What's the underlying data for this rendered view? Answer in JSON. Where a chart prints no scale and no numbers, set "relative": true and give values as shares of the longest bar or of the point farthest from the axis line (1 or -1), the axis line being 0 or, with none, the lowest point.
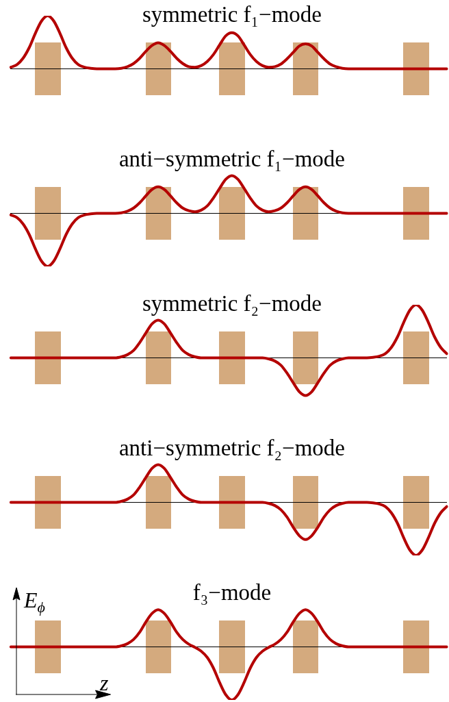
{
  "chart_data": [
    {
      "type": "line",
      "title": "symmetric f₁−mode",
      "relative": true,
      "color": "#b40000",
      "categories": [
        null,
        null,
        null,
        null,
        null,
        null,
        null,
        null,
        null,
        null,
        null,
        null,
        null,
        null,
        null,
        null,
        null,
        null,
        null,
        null,
        null,
        null,
        null,
        null,
        null,
        null,
        null,
        null,
        null,
        null,
        null,
        null,
        null,
        null,
        null,
        null,
        null,
        null,
        null,
        null,
        null,
        null,
        null,
        null,
        null,
        null,
        null,
        null,
        null,
        null,
        null,
        null,
        null,
        null,
        null,
        null,
        null,
        null,
        null,
        null,
        null,
        null,
        null,
        null,
        null,
        null,
        null,
        null,
        null,
        null,
        null,
        null
      ],
      "values": [
        0.03,
        0.08,
        0.2,
        0.4,
        0.67,
        0.9,
        1,
        0.9,
        0.67,
        0.4,
        0.2,
        0.08,
        0.03,
        0.01,
        0,
        0,
        0,
        0,
        0.01,
        0.04,
        0.1,
        0.2,
        0.33,
        0.44,
        0.49,
        0.44,
        0.33,
        0.2,
        0.1,
        0.04,
        0.03,
        0.06,
        0.14,
        0.27,
        0.45,
        0.62,
        0.68,
        0.62,
        0.45,
        0.27,
        0.14,
        0.06,
        0.03,
        0.04,
        0.09,
        0.19,
        0.31,
        0.43,
        0.47,
        0.43,
        0.31,
        0.19,
        0.09,
        0.04,
        0.01,
        0,
        0,
        0,
        0,
        0,
        0,
        0,
        0,
        0,
        0,
        0,
        0,
        0,
        0,
        0,
        0,
        0
      ]
    },
    {
      "type": "line",
      "title": "anti−symmetric f₁−mode",
      "relative": true,
      "color": "#b40000",
      "categories": [
        null,
        null,
        null,
        null,
        null,
        null,
        null,
        null,
        null,
        null,
        null,
        null,
        null,
        null,
        null,
        null,
        null,
        null,
        null,
        null,
        null,
        null,
        null,
        null,
        null,
        null,
        null,
        null,
        null,
        null,
        null,
        null,
        null,
        null,
        null,
        null,
        null,
        null,
        null,
        null,
        null,
        null,
        null,
        null,
        null,
        null,
        null,
        null,
        null,
        null,
        null,
        null,
        null,
        null,
        null,
        null,
        null,
        null,
        null,
        null,
        null,
        null,
        null,
        null,
        null,
        null,
        null,
        null,
        null,
        null,
        null,
        null
      ],
      "values": [
        -0.03,
        -0.08,
        -0.2,
        -0.4,
        -0.67,
        -0.9,
        -1,
        -0.9,
        -0.67,
        -0.4,
        -0.2,
        -0.08,
        -0.03,
        -0.01,
        0,
        0,
        0,
        0,
        0.01,
        0.04,
        0.1,
        0.2,
        0.33,
        0.45,
        0.5,
        0.45,
        0.33,
        0.2,
        0.1,
        0.05,
        0.03,
        0.06,
        0.14,
        0.29,
        0.47,
        0.64,
        0.71,
        0.64,
        0.47,
        0.29,
        0.14,
        0.06,
        0.03,
        0.05,
        0.1,
        0.2,
        0.33,
        0.45,
        0.5,
        0.45,
        0.33,
        0.2,
        0.1,
        0.04,
        0.01,
        0,
        0,
        0,
        0,
        0,
        0,
        0,
        0,
        0,
        0,
        0,
        0,
        0,
        0,
        0,
        0,
        0
      ]
    },
    {
      "type": "line",
      "title": "symmetric f₂−mode",
      "relative": true,
      "color": "#b40000",
      "categories": [
        null,
        null,
        null,
        null,
        null,
        null,
        null,
        null,
        null,
        null,
        null,
        null,
        null,
        null,
        null,
        null,
        null,
        null,
        null,
        null,
        null,
        null,
        null,
        null,
        null,
        null,
        null,
        null,
        null,
        null,
        null,
        null,
        null,
        null,
        null,
        null,
        null,
        null,
        null,
        null,
        null,
        null,
        null,
        null,
        null,
        null,
        null,
        null,
        null,
        null,
        null,
        null,
        null,
        null,
        null,
        null,
        null,
        null,
        null,
        null,
        null,
        null,
        null,
        null,
        null,
        null,
        null,
        null,
        null,
        null,
        null,
        null
      ],
      "values": [
        0,
        0,
        0,
        0,
        0,
        0,
        0,
        0,
        0,
        0,
        0,
        0,
        0,
        0,
        0,
        0,
        0,
        0,
        0.02,
        0.06,
        0.14,
        0.29,
        0.47,
        0.64,
        0.71,
        0.64,
        0.47,
        0.29,
        0.14,
        0.06,
        0.02,
        0,
        0,
        0,
        0,
        0,
        0,
        0,
        0,
        0,
        0,
        0,
        -0.02,
        -0.06,
        -0.14,
        -0.29,
        -0.47,
        -0.64,
        -0.71,
        -0.64,
        -0.47,
        -0.29,
        -0.14,
        -0.06,
        -0.02,
        0,
        0,
        0,
        0,
        0.01,
        0.03,
        0.08,
        0.2,
        0.4,
        0.67,
        0.9,
        1,
        0.9,
        0.67,
        0.4,
        0.2,
        0.08
      ]
    },
    {
      "type": "line",
      "title": "anti−symmetric f₂−mode",
      "relative": true,
      "color": "#b40000",
      "categories": [
        null,
        null,
        null,
        null,
        null,
        null,
        null,
        null,
        null,
        null,
        null,
        null,
        null,
        null,
        null,
        null,
        null,
        null,
        null,
        null,
        null,
        null,
        null,
        null,
        null,
        null,
        null,
        null,
        null,
        null,
        null,
        null,
        null,
        null,
        null,
        null,
        null,
        null,
        null,
        null,
        null,
        null,
        null,
        null,
        null,
        null,
        null,
        null,
        null,
        null,
        null,
        null,
        null,
        null,
        null,
        null,
        null,
        null,
        null,
        null,
        null,
        null,
        null,
        null,
        null,
        null,
        null,
        null,
        null,
        null,
        null,
        null
      ],
      "values": [
        0,
        0,
        0,
        0,
        0,
        0,
        0,
        0,
        0,
        0,
        0,
        0,
        0,
        0,
        0,
        0,
        0,
        0,
        0.02,
        0.06,
        0.14,
        0.29,
        0.47,
        0.64,
        0.71,
        0.64,
        0.47,
        0.29,
        0.14,
        0.06,
        0.02,
        0,
        0,
        0,
        0,
        0,
        0,
        0,
        0,
        0,
        0,
        0,
        -0.02,
        -0.06,
        -0.14,
        -0.28,
        -0.47,
        -0.63,
        -0.7,
        -0.63,
        -0.47,
        -0.28,
        -0.14,
        -0.06,
        -0.02,
        0,
        0,
        0,
        0,
        -0.01,
        -0.03,
        -0.08,
        -0.2,
        -0.4,
        -0.67,
        -0.9,
        -1,
        -0.9,
        -0.67,
        -0.4,
        -0.2,
        -0.08
      ]
    },
    {
      "type": "line",
      "title": "f₃−mode",
      "xlabel": "z",
      "ylabel": "E$_{ϕ}$",
      "relative": true,
      "color": "#b40000",
      "categories": [
        null,
        null,
        null,
        null,
        null,
        null,
        null,
        null,
        null,
        null,
        null,
        null,
        null,
        null,
        null,
        null,
        null,
        null,
        null,
        null,
        null,
        null,
        null,
        null,
        null,
        null,
        null,
        null,
        null,
        null,
        null,
        null,
        null,
        null,
        null,
        null,
        null,
        null,
        null,
        null,
        null,
        null,
        null,
        null,
        null,
        null,
        null,
        null,
        null,
        null,
        null,
        null,
        null,
        null,
        null,
        null,
        null,
        null,
        null,
        null,
        null,
        null,
        null,
        null,
        null,
        null,
        null,
        null,
        null,
        null,
        null,
        null
      ],
      "values": [
        0,
        0,
        0,
        0,
        0,
        0,
        0,
        0,
        0,
        0,
        0,
        0,
        0,
        0,
        0,
        0,
        0,
        0,
        0.02,
        0.06,
        0.14,
        0.28,
        0.47,
        0.63,
        0.7,
        0.63,
        0.47,
        0.28,
        0.14,
        0.05,
        -0.01,
        -0.08,
        -0.2,
        -0.4,
        -0.67,
        -0.9,
        -1,
        -0.9,
        -0.67,
        -0.4,
        -0.2,
        -0.08,
        -0.01,
        0.05,
        0.14,
        0.28,
        0.47,
        0.63,
        0.7,
        0.63,
        0.47,
        0.28,
        0.14,
        0.06,
        0.02,
        0,
        0,
        0,
        0,
        0,
        0,
        0,
        0,
        0,
        0,
        0,
        0,
        0,
        0,
        0,
        0,
        0
      ]
    }
  ]
}
